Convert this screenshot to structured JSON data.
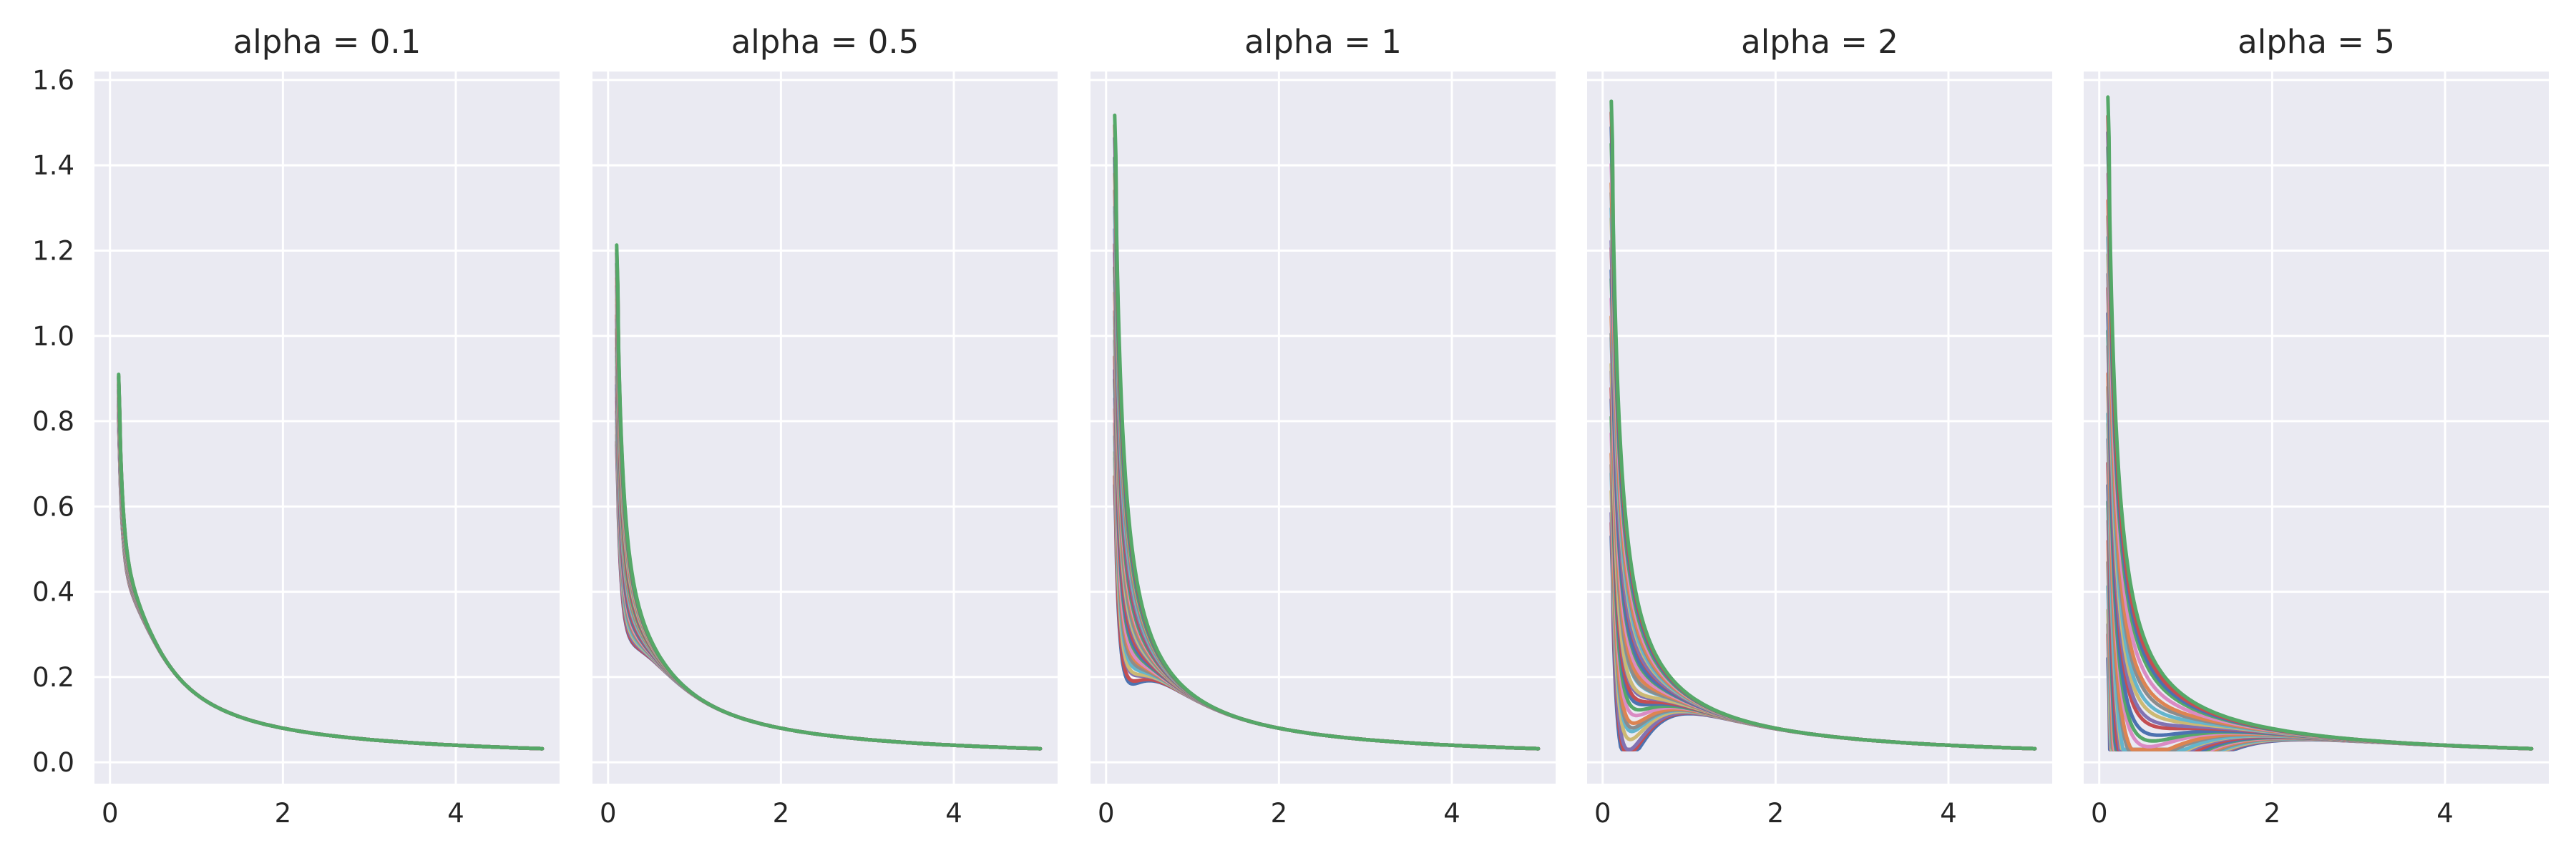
{
  "chart_data": {
    "type": "line",
    "x_range": [
      0,
      5
    ],
    "ylim": [
      -0.05,
      1.62
    ],
    "xlim": [
      -0.18,
      5.2
    ],
    "x_ticks": [
      0,
      2,
      4
    ],
    "x_tick_labels": [
      "0",
      "2",
      "4"
    ],
    "y_ticks": [
      0,
      0.2,
      0.4,
      0.6,
      0.8,
      1.0,
      1.2,
      1.4,
      1.6
    ],
    "y_tick_labels": [
      "0.0",
      "0.2",
      "0.4",
      "0.6",
      "0.8",
      "1.0",
      "1.2",
      "1.4",
      "1.6"
    ],
    "grid": true,
    "sharey": true,
    "palette": [
      "#4c72b0",
      "#c44e52",
      "#8172b2",
      "#ccb974",
      "#64b5cd",
      "#8c8c8c",
      "#dd8452",
      "#da8bc3",
      "#55a868"
    ],
    "panels": [
      {
        "title": "alpha = 0.1",
        "alpha": 0.1,
        "y_start_min": 0.8,
        "y_start_max": 0.91,
        "n_series": 30,
        "spread_decay": 8
      },
      {
        "title": "alpha = 0.5",
        "alpha": 0.5,
        "y_start_min": 0.74,
        "y_start_max": 1.22,
        "n_series": 30,
        "spread_decay": 6
      },
      {
        "title": "alpha = 1",
        "alpha": 1,
        "y_start_min": 0.65,
        "y_start_max": 1.52,
        "n_series": 30,
        "spread_decay": 5
      },
      {
        "title": "alpha = 2",
        "alpha": 2,
        "y_start_min": 0.52,
        "y_start_max": 1.55,
        "n_series": 30,
        "spread_decay": 3.5
      },
      {
        "title": "alpha = 5",
        "alpha": 5,
        "y_start_min": 0.24,
        "y_start_max": 1.56,
        "n_series": 30,
        "spread_decay": 2
      }
    ]
  }
}
